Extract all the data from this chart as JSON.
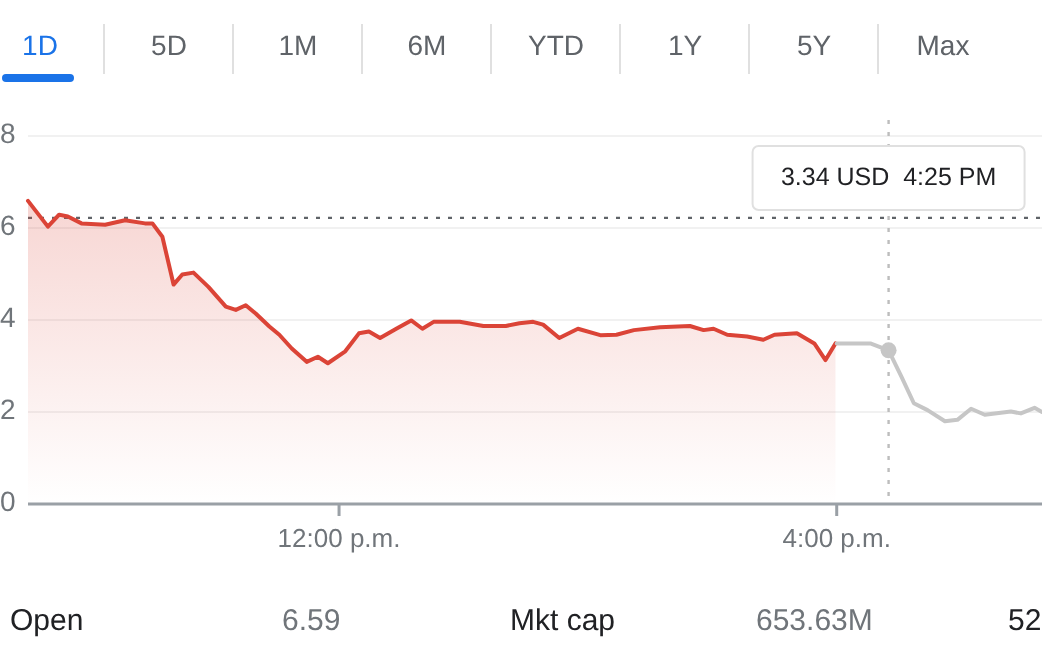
{
  "chart_data": {
    "type": "area",
    "x": [
      9.5,
      9.66,
      9.75,
      9.82,
      9.93,
      10.12,
      10.28,
      10.44,
      10.5,
      10.58,
      10.67,
      10.74,
      10.83,
      10.95,
      11.09,
      11.17,
      11.25,
      11.33,
      11.44,
      11.52,
      11.62,
      11.74,
      11.83,
      11.91,
      12.05,
      12.16,
      12.24,
      12.33,
      12.46,
      12.58,
      12.67,
      12.76,
      12.97,
      13.16,
      13.34,
      13.45,
      13.56,
      13.64,
      13.77,
      13.92,
      14.1,
      14.23,
      14.37,
      14.58,
      14.82,
      14.93,
      15.01,
      15.12,
      15.28,
      15.41,
      15.5,
      15.68,
      15.82,
      15.91,
      15.99
    ],
    "series": [
      {
        "color": "#db4437",
        "values": [
          6.59,
          6.03,
          6.29,
          6.25,
          6.1,
          6.07,
          6.17,
          6.1,
          6.1,
          5.81,
          4.77,
          4.99,
          5.03,
          4.72,
          4.29,
          4.22,
          4.32,
          4.14,
          3.86,
          3.68,
          3.38,
          3.09,
          3.2,
          3.06,
          3.32,
          3.71,
          3.75,
          3.61,
          3.81,
          3.99,
          3.81,
          3.96,
          3.96,
          3.87,
          3.87,
          3.93,
          3.96,
          3.9,
          3.61,
          3.81,
          3.67,
          3.68,
          3.78,
          3.84,
          3.87,
          3.78,
          3.81,
          3.68,
          3.64,
          3.57,
          3.68,
          3.71,
          3.49,
          3.13,
          3.49
        ]
      },
      {
        "type": "line",
        "color": "#c6c6c6",
        "x": [
          16.0,
          16.27,
          16.417,
          16.52,
          16.62,
          16.73,
          16.87,
          16.97,
          17.08,
          17.19,
          17.4,
          17.48,
          17.59,
          17.65
        ],
        "values": [
          3.49,
          3.49,
          3.34,
          2.77,
          2.19,
          2.04,
          1.8,
          1.83,
          2.07,
          1.94,
          2.01,
          1.97,
          2.09,
          2.0
        ]
      }
    ],
    "xlim": [
      9.5,
      17.65
    ],
    "xticks": [
      {
        "value": 12,
        "label": "12:00 p.m."
      },
      {
        "value": 16,
        "label": "4:00 p.m."
      }
    ],
    "ylim": [
      0,
      8
    ],
    "yticks": [
      0,
      2,
      4,
      6,
      8
    ],
    "grid": "y",
    "marker": "none",
    "line_style": "solid",
    "ref_lines": [
      {
        "axis": "y",
        "value": 6.22,
        "label": null,
        "color": "#5f6368",
        "line_style": "dotted"
      },
      {
        "axis": "x",
        "value": 16.417,
        "label": null,
        "color": "#bdbdbd",
        "line_style": "dotted"
      }
    ],
    "annotations": [
      "3.34 USD  4:25 PM",
      "1D",
      "5D",
      "1M",
      "6M",
      "YTD",
      "1Y",
      "5Y",
      "Max",
      "Open",
      "6.59",
      "Mkt cap",
      "653.63M",
      "52"
    ]
  }
}
